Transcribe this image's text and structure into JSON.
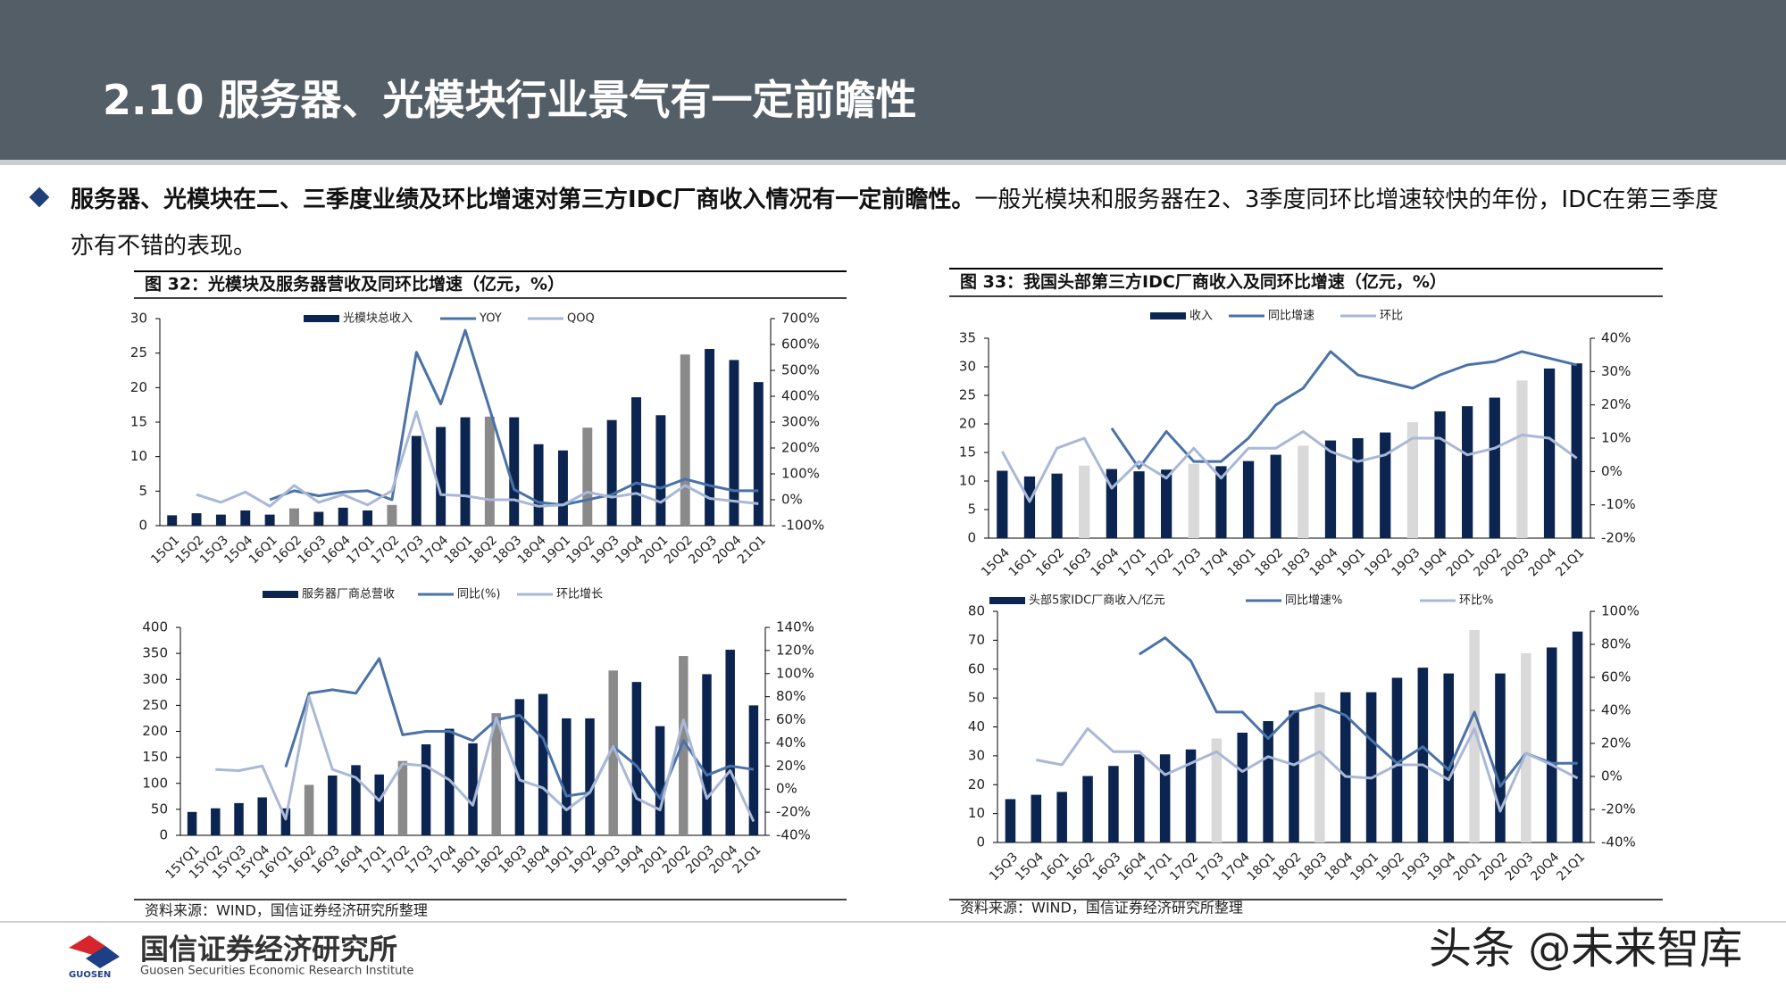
{
  "header": {
    "title": "2.10 服务器、光模块行业景气有一定前瞻性"
  },
  "bullet": {
    "bold": "服务器、光模块在二、三季度业绩及环比增速对第三方IDC厂商收入情况有一定前瞻性。",
    "text": "一般光模块和服务器在2、3季度同环比增速较快的年份，IDC在第三季度亦有不错的表现。"
  },
  "footer": {
    "logo": "GUOSEN",
    "org": "国信证券经济研究所",
    "org_en": "Guosen Securities Economic Research Institute",
    "watermark": "头条 @未来智库"
  },
  "chart_data": [
    {
      "type": "bar-line",
      "title": "图 32：光模块及服务器营收及同环比增速（亿元，%）",
      "categories": [
        "15Q1",
        "15Q2",
        "15Q3",
        "15Q4",
        "16Q1",
        "16Q2",
        "16Q3",
        "16Q4",
        "17Q1",
        "17Q2",
        "17Q3",
        "17Q4",
        "18Q1",
        "18Q2",
        "18Q3",
        "18Q4",
        "19Q1",
        "19Q2",
        "19Q3",
        "19Q4",
        "20Q1",
        "20Q2",
        "20Q3",
        "20Q4",
        "21Q1"
      ],
      "series": [
        {
          "name": "光模块总收入",
          "type": "bar",
          "color": "#0c2550",
          "colors": [
            "#0c2550",
            "#0c2550",
            "#0c2550",
            "#0c2550",
            "#0c2550",
            "#8a8a8a",
            "#0c2550",
            "#0c2550",
            "#0c2550",
            "#8a8a8a",
            "#0c2550",
            "#0c2550",
            "#0c2550",
            "#8a8a8a",
            "#0c2550",
            "#0c2550",
            "#0c2550",
            "#8a8a8a",
            "#0c2550",
            "#0c2550",
            "#0c2550",
            "#8a8a8a",
            "#0c2550",
            "#0c2550",
            "#0c2550"
          ],
          "values": [
            1.5,
            1.8,
            1.6,
            2.2,
            1.6,
            2.5,
            2.0,
            2.6,
            2.2,
            3.0,
            13,
            14.3,
            15.7,
            15.8,
            15.7,
            11.8,
            10.9,
            14.2,
            15.3,
            18.6,
            16,
            24.8,
            25.6,
            24,
            20.8
          ]
        },
        {
          "name": "YOY",
          "type": "line",
          "axis": "y2",
          "color": "#4a72a8",
          "values": [
            null,
            null,
            null,
            null,
            0,
            35,
            15,
            30,
            35,
            0,
            570,
            370,
            655,
            350,
            40,
            -10,
            -20,
            0,
            20,
            65,
            45,
            80,
            55,
            35,
            35
          ]
        },
        {
          "name": "QOQ",
          "type": "line",
          "axis": "y2",
          "color": "#a9b8d6",
          "values": [
            null,
            20,
            -10,
            30,
            -25,
            55,
            -10,
            20,
            -20,
            35,
            340,
            20,
            15,
            0,
            0,
            -25,
            -20,
            30,
            10,
            25,
            -10,
            55,
            5,
            -5,
            -15
          ]
        }
      ],
      "ylim": [
        0,
        30
      ],
      "yticks": [
        0,
        5,
        10,
        15,
        20,
        25,
        30
      ],
      "y2lim": [
        -100,
        700
      ],
      "y2ticks": [
        {
          "value": -100,
          "label": "-100%"
        },
        {
          "value": 0,
          "label": "0%"
        },
        {
          "value": 100,
          "label": "100%"
        },
        {
          "value": 200,
          "label": "200%"
        },
        {
          "value": 300,
          "label": "300%"
        },
        {
          "value": 400,
          "label": "400%"
        },
        {
          "value": 500,
          "label": "500%"
        },
        {
          "value": 600,
          "label": "600%"
        },
        {
          "value": 700,
          "label": "700%"
        }
      ],
      "grid": false,
      "legend": "top"
    },
    {
      "type": "bar-line",
      "categories": [
        "15YQ1",
        "15YQ2",
        "15YQ3",
        "15YQ4",
        "16YQ1",
        "16Q2",
        "16Q3",
        "16Q4",
        "17Q1",
        "17Q2",
        "17Q3",
        "17Q4",
        "18Q1",
        "18Q2",
        "18Q3",
        "18Q4",
        "19Q1",
        "19Q2",
        "19Q3",
        "19Q4",
        "20Q1",
        "20Q2",
        "20Q3",
        "20Q4",
        "21Q1"
      ],
      "series": [
        {
          "name": "服务器厂商总营收",
          "type": "bar",
          "color": "#0c2550",
          "colors": [
            "#0c2550",
            "#0c2550",
            "#0c2550",
            "#0c2550",
            "#0c2550",
            "#8a8a8a",
            "#0c2550",
            "#0c2550",
            "#0c2550",
            "#8a8a8a",
            "#0c2550",
            "#0c2550",
            "#0c2550",
            "#8a8a8a",
            "#0c2550",
            "#0c2550",
            "#0c2550",
            "#0c2550",
            "#8a8a8a",
            "#0c2550",
            "#0c2550",
            "#8a8a8a",
            "#0c2550",
            "#0c2550",
            "#0c2550"
          ],
          "values": [
            45,
            52,
            62,
            73,
            52,
            97,
            115,
            135,
            117,
            143,
            175,
            205,
            177,
            235,
            262,
            272,
            225,
            225,
            317,
            295,
            210,
            345,
            310,
            357,
            250
          ]
        },
        {
          "name": "同比(%)",
          "type": "line",
          "axis": "y2",
          "color": "#4a72a8",
          "values": [
            null,
            null,
            null,
            null,
            19,
            83,
            86,
            83,
            113,
            47,
            50,
            50,
            42,
            60,
            64,
            44,
            -6,
            -3,
            37,
            20,
            -8,
            42,
            12,
            20,
            17
          ]
        },
        {
          "name": "环比增长",
          "type": "line",
          "axis": "y2",
          "color": "#a9b8d6",
          "values": [
            null,
            17,
            16,
            20,
            -26,
            80,
            17,
            10,
            -10,
            22,
            20,
            8,
            -14,
            62,
            8,
            1,
            -18,
            -3,
            37,
            -8,
            -18,
            60,
            -8,
            16,
            -28
          ]
        }
      ],
      "ylim": [
        0,
        400
      ],
      "yticks": [
        0,
        50,
        100,
        150,
        200,
        250,
        300,
        350,
        400
      ],
      "y2lim": [
        -40,
        140
      ],
      "y2ticks": [
        {
          "value": -40,
          "label": "-40%"
        },
        {
          "value": -20,
          "label": "-20%"
        },
        {
          "value": 0,
          "label": "0%"
        },
        {
          "value": 20,
          "label": "20%"
        },
        {
          "value": 40,
          "label": "40%"
        },
        {
          "value": 60,
          "label": "60%"
        },
        {
          "value": 80,
          "label": "80%"
        },
        {
          "value": 100,
          "label": "100%"
        },
        {
          "value": 120,
          "label": "120%"
        },
        {
          "value": 140,
          "label": "140%"
        }
      ],
      "grid": false,
      "legend": "top",
      "source": "资料来源：WIND，国信证券经济研究所整理"
    },
    {
      "type": "bar-line",
      "title": "图 33：我国头部第三方IDC厂商收入及同环比增速（亿元，%）",
      "categories": [
        "15Q4",
        "16Q1",
        "16Q2",
        "16Q3",
        "16Q4",
        "17Q1",
        "17Q2",
        "17Q3",
        "17Q4",
        "18Q1",
        "18Q2",
        "18Q3",
        "18Q4",
        "19Q1",
        "19Q2",
        "19Q3",
        "19Q4",
        "20Q1",
        "20Q2",
        "20Q3",
        "20Q4",
        "21Q1"
      ],
      "series": [
        {
          "name": "收入",
          "type": "bar",
          "color": "#0c2550",
          "colors": [
            "#0c2550",
            "#0c2550",
            "#0c2550",
            "#d9d9d9",
            "#0c2550",
            "#0c2550",
            "#0c2550",
            "#d9d9d9",
            "#0c2550",
            "#0c2550",
            "#0c2550",
            "#d9d9d9",
            "#0c2550",
            "#0c2550",
            "#0c2550",
            "#d9d9d9",
            "#0c2550",
            "#0c2550",
            "#0c2550",
            "#d9d9d9",
            "#0c2550",
            "#0c2550"
          ],
          "values": [
            11.8,
            10.8,
            11.3,
            12.7,
            12.1,
            11.7,
            12.0,
            13.0,
            12.6,
            13.5,
            14.6,
            16.2,
            17.1,
            17.5,
            18.5,
            20.3,
            22.2,
            23.1,
            24.6,
            27.6,
            29.7,
            30.6
          ]
        },
        {
          "name": "同比增速",
          "type": "line",
          "axis": "y2",
          "color": "#4a72a8",
          "values": [
            null,
            null,
            null,
            null,
            13,
            1,
            12,
            3,
            3,
            10,
            20,
            25,
            36,
            29,
            27,
            25,
            29,
            32,
            33,
            36,
            34,
            32
          ]
        },
        {
          "name": "环比",
          "type": "line",
          "axis": "y2",
          "color": "#a9b8d6",
          "values": [
            6,
            -9,
            7,
            10,
            -5,
            3,
            -2,
            7,
            -2,
            7,
            7,
            12,
            6,
            3,
            5,
            10,
            10,
            5,
            7,
            11,
            10,
            4
          ]
        }
      ],
      "ylim": [
        0,
        35
      ],
      "yticks": [
        0,
        5,
        10,
        15,
        20,
        25,
        30,
        35
      ],
      "y2lim": [
        -20,
        40
      ],
      "y2ticks": [
        {
          "value": -20,
          "label": "-20%"
        },
        {
          "value": -10,
          "label": "-10%"
        },
        {
          "value": 0,
          "label": "0%"
        },
        {
          "value": 10,
          "label": "10%"
        },
        {
          "value": 20,
          "label": "20%"
        },
        {
          "value": 30,
          "label": "30%"
        },
        {
          "value": 40,
          "label": "40%"
        }
      ],
      "grid": false,
      "legend": "top"
    },
    {
      "type": "bar-line",
      "categories": [
        "15Q3",
        "15Q4",
        "16Q1",
        "16Q2",
        "16Q3",
        "16Q4",
        "17Q1",
        "17Q2",
        "17Q3",
        "17Q4",
        "18Q1",
        "18Q2",
        "18Q3",
        "18Q4",
        "19Q1",
        "19Q2",
        "19Q3",
        "19Q4",
        "20Q1",
        "20Q2",
        "20Q3",
        "20Q4",
        "21Q1"
      ],
      "series": [
        {
          "name": "头部5家IDC厂商收入/亿元",
          "type": "bar",
          "color": "#0c2550",
          "colors": [
            "#0c2550",
            "#0c2550",
            "#0c2550",
            "#0c2550",
            "#0c2550",
            "#0c2550",
            "#0c2550",
            "#0c2550",
            "#d9d9d9",
            "#0c2550",
            "#0c2550",
            "#0c2550",
            "#d9d9d9",
            "#0c2550",
            "#0c2550",
            "#0c2550",
            "#0c2550",
            "#0c2550",
            "#d9d9d9",
            "#0c2550",
            "#d9d9d9",
            "#0c2550",
            "#0c2550"
          ],
          "values": [
            15,
            16.5,
            17.5,
            23,
            26.5,
            30.5,
            30.5,
            32.2,
            36,
            38,
            42,
            45.7,
            52,
            52,
            52,
            57,
            60.5,
            58.5,
            73.5,
            58.5,
            65.5,
            67.5,
            73
          ]
        },
        {
          "name": "同比增速%",
          "type": "line",
          "axis": "y2",
          "color": "#4a72a8",
          "values": [
            null,
            null,
            null,
            null,
            null,
            74,
            84,
            70,
            39,
            39,
            23,
            39,
            43,
            37,
            22,
            8,
            18,
            4,
            39,
            -6,
            14,
            8,
            8
          ]
        },
        {
          "name": "环比%",
          "type": "line",
          "axis": "y2",
          "color": "#a9b8d6",
          "values": [
            null,
            10,
            7,
            29,
            15,
            15,
            1,
            8,
            15,
            3,
            12,
            7,
            15,
            0,
            -1,
            7,
            7,
            -2,
            29,
            -21,
            14,
            7,
            -1
          ]
        }
      ],
      "ylim": [
        0,
        80
      ],
      "yticks": [
        0,
        10,
        20,
        30,
        40,
        50,
        60,
        70,
        80
      ],
      "y2lim": [
        -40,
        100
      ],
      "y2ticks": [
        {
          "value": -40,
          "label": "-40%"
        },
        {
          "value": -20,
          "label": "-20%"
        },
        {
          "value": 0,
          "label": "0%"
        },
        {
          "value": 20,
          "label": "20%"
        },
        {
          "value": 40,
          "label": "40%"
        },
        {
          "value": 60,
          "label": "60%"
        },
        {
          "value": 80,
          "label": "80%"
        },
        {
          "value": 100,
          "label": "100%"
        }
      ],
      "grid": false,
      "legend": "top",
      "source": "资料来源：WIND，国信证券经济研究所整理"
    }
  ]
}
